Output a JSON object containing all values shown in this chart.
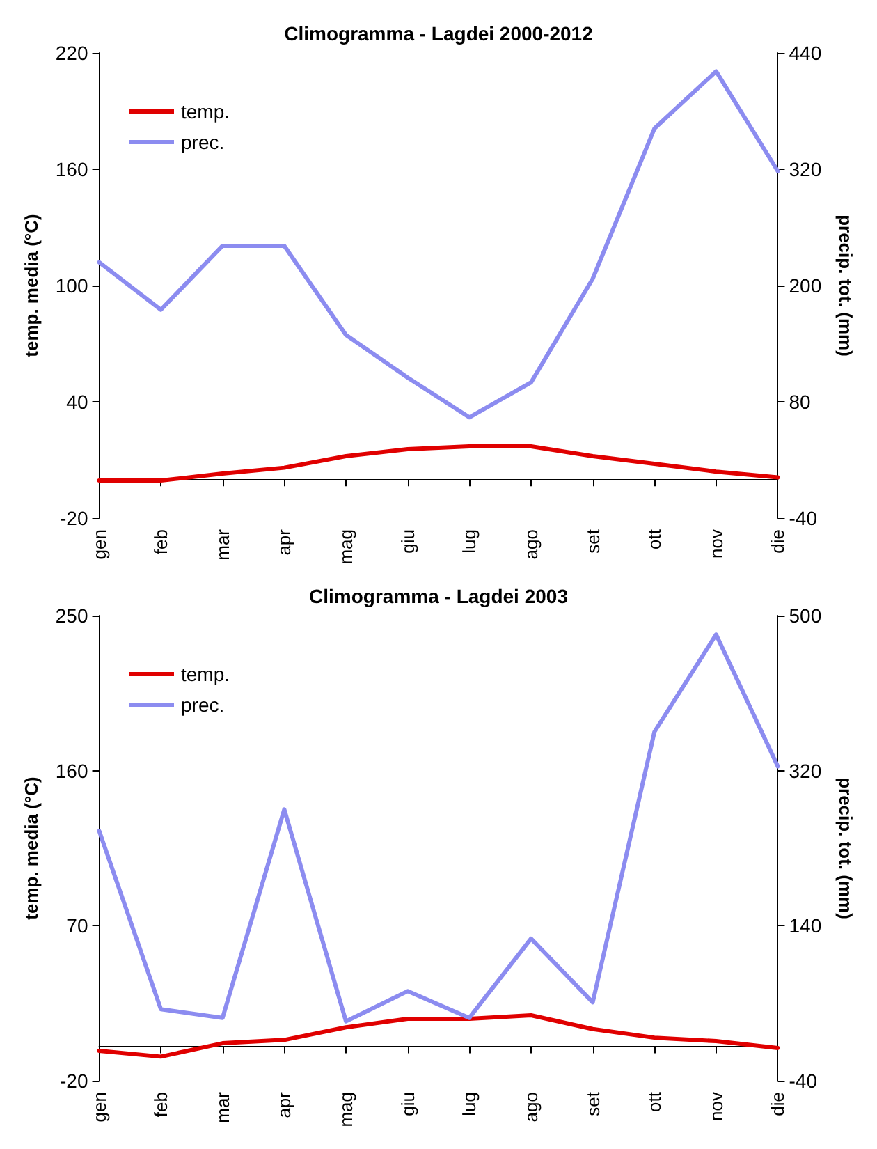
{
  "chart_data": [
    {
      "type": "line",
      "title": "Climogramma - Lagdei 2000-2012",
      "ylabel": "temp. media (°C)",
      "y2label": "precip. tot. (mm)",
      "categories": [
        "gen",
        "feb",
        "mar",
        "apr",
        "mag",
        "giu",
        "lug",
        "ago",
        "set",
        "ott",
        "nov",
        "die"
      ],
      "series": [
        {
          "name": "temp.",
          "color": "#e00000",
          "axis": "y",
          "values": [
            -0.6,
            -0.6,
            3,
            6,
            12,
            15.6,
            17,
            17,
            12,
            8,
            4,
            1
          ]
        },
        {
          "name": "prec.",
          "color": "#8c8cf0",
          "axis": "y2",
          "values": [
            224,
            175,
            241,
            241,
            149,
            105,
            64,
            100,
            207,
            362,
            421,
            318
          ]
        }
      ],
      "ylim": [
        -20,
        220
      ],
      "yticks": [
        -20,
        40,
        100,
        160,
        220
      ],
      "y2lim": [
        -40,
        440
      ],
      "y2ticks": [
        -40,
        80,
        200,
        320,
        440
      ],
      "grid": false,
      "legend": "top left",
      "marker": "none",
      "line_style": "solid"
    },
    {
      "type": "line",
      "title": "Climogramma - Lagdei 2003",
      "ylabel": "temp. media (°C)",
      "y2label": "precip. tot. (mm)",
      "categories": [
        "gen",
        "feb",
        "mar",
        "apr",
        "mag",
        "giu",
        "lug",
        "ago",
        "set",
        "ott",
        "nov",
        "die"
      ],
      "series": [
        {
          "name": "temp.",
          "color": "#e00000",
          "axis": "y",
          "values": [
            -2.6,
            -6,
            1.8,
            3.7,
            11,
            16,
            16,
            18,
            10,
            5,
            3,
            -1
          ]
        },
        {
          "name": "prec.",
          "color": "#8c8cf0",
          "axis": "y2",
          "values": [
            250,
            43,
            33,
            275,
            29,
            64,
            33,
            125,
            51,
            365,
            478,
            325
          ]
        }
      ],
      "ylim": [
        -20,
        250
      ],
      "yticks": [
        -20,
        70,
        160,
        250
      ],
      "y2lim": [
        -40,
        500
      ],
      "y2ticks": [
        -40,
        140,
        320,
        500
      ],
      "grid": false,
      "legend": "top left",
      "marker": "none",
      "line_style": "solid"
    }
  ]
}
